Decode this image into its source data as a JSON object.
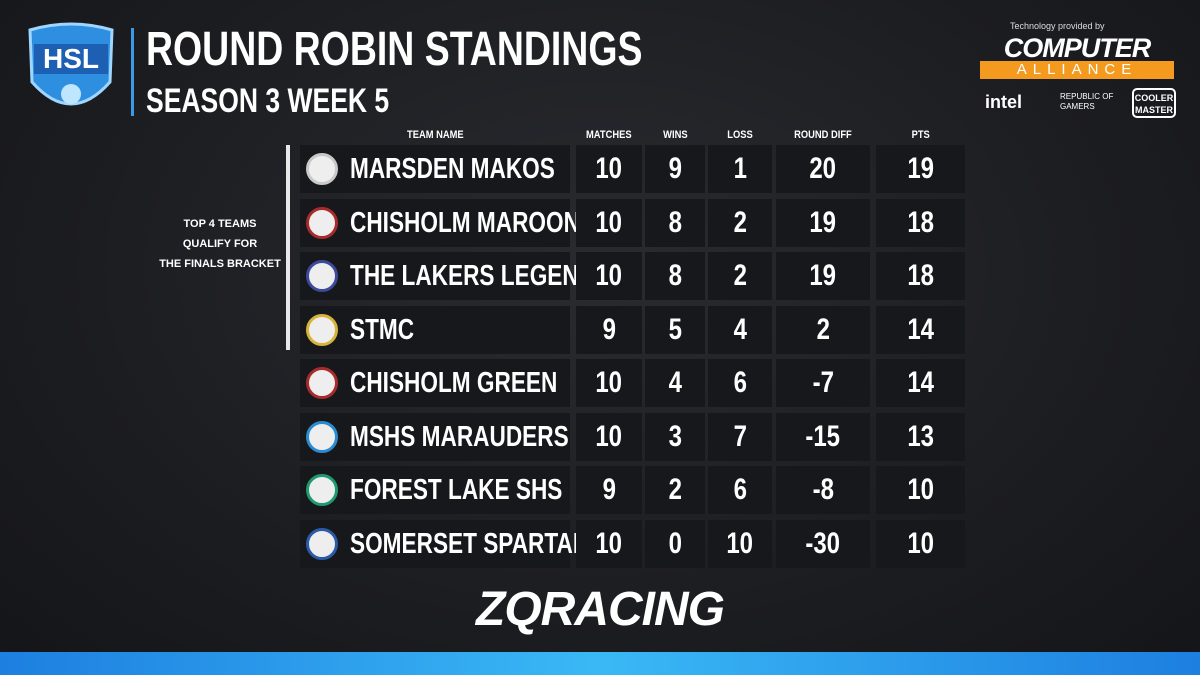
{
  "header": {
    "logo": "HSL",
    "title": "ROUND ROBIN STANDINGS",
    "subtitle": "SEASON 3 WEEK 5"
  },
  "sponsors": {
    "credit": "Technology provided by",
    "main": "COMPUTER",
    "main_sub": "ALLIANCE",
    "others": [
      "intel",
      "REPUBLIC OF GAMERS",
      "COOLER MASTER"
    ]
  },
  "note": [
    "TOP 4 TEAMS",
    "QUALIFY FOR",
    "THE FINALS BRACKET"
  ],
  "table": {
    "columns": [
      "TEAM NAME",
      "MATCHES",
      "WINS",
      "LOSS",
      "ROUND DIFF",
      "PTS"
    ],
    "rows": [
      [
        "MARSDEN MAKOS",
        10,
        9,
        1,
        20,
        19
      ],
      [
        "CHISHOLM MAROON",
        10,
        8,
        2,
        19,
        18
      ],
      [
        "THE LAKERS LEGENDS",
        10,
        8,
        2,
        19,
        18
      ],
      [
        "STMC",
        9,
        5,
        4,
        2,
        14
      ],
      [
        "CHISHOLM GREEN",
        10,
        4,
        6,
        -7,
        14
      ],
      [
        "MSHS MARAUDERS",
        10,
        3,
        7,
        -15,
        13
      ],
      [
        "FOREST LAKE SHS",
        9,
        2,
        6,
        -8,
        10
      ],
      [
        "SOMERSET SPARTANS",
        10,
        0,
        10,
        -30,
        10
      ]
    ]
  },
  "footer": {
    "brand": "ZQRACING"
  }
}
